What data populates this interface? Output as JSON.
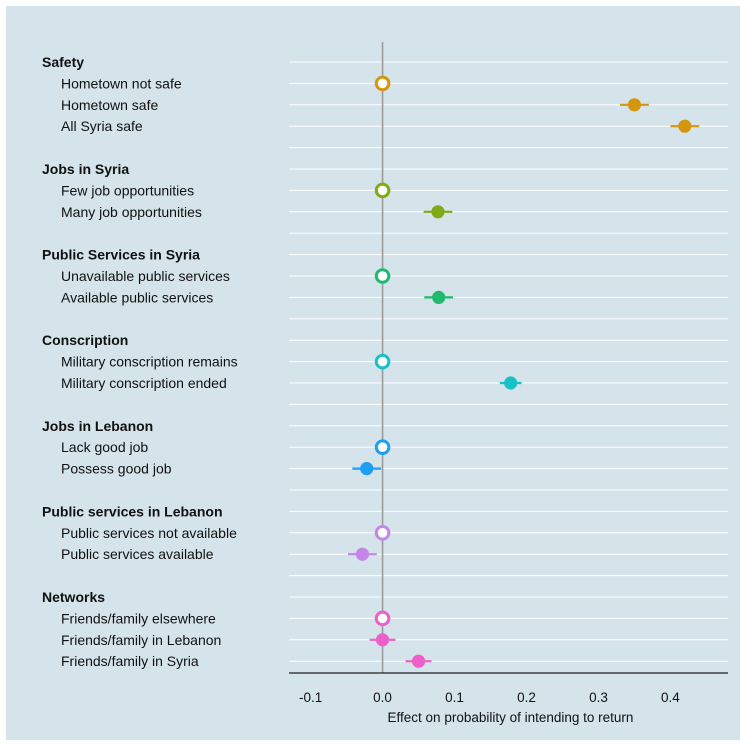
{
  "chart_data": {
    "type": "scatter",
    "subtype": "coefficient-plot",
    "xlabel": "Effect on probability of intending to return",
    "xlim": [
      -0.13,
      0.48
    ],
    "xticks": [
      -0.1,
      0.0,
      0.1,
      0.2,
      0.3,
      0.4
    ],
    "xtick_labels": [
      "-0.1",
      "0.0",
      "0.1",
      "0.2",
      "0.3",
      "0.4"
    ],
    "reference_line_x": 0,
    "grid": "horizontal",
    "background": "#d5e3ea",
    "groups": [
      {
        "label": "Safety",
        "color": "#d4960f",
        "items": [
          {
            "label": "Hometown not safe",
            "estimate": 0.0,
            "ci": [
              0.0,
              0.0
            ],
            "baseline": true
          },
          {
            "label": "Hometown safe",
            "estimate": 0.35,
            "ci": [
              0.33,
              0.37
            ],
            "baseline": false
          },
          {
            "label": "All Syria safe",
            "estimate": 0.42,
            "ci": [
              0.4,
              0.44
            ],
            "baseline": false
          }
        ]
      },
      {
        "label": "Jobs in Syria",
        "color": "#7fab14",
        "items": [
          {
            "label": "Few job opportunities",
            "estimate": 0.0,
            "ci": [
              0.0,
              0.0
            ],
            "baseline": true
          },
          {
            "label": "Many job opportunities",
            "estimate": 0.077,
            "ci": [
              0.057,
              0.097
            ],
            "baseline": false
          }
        ]
      },
      {
        "label": "Public Services in Syria",
        "color": "#1fba6e",
        "items": [
          {
            "label": "Unavailable public services",
            "estimate": 0.0,
            "ci": [
              0.0,
              0.0
            ],
            "baseline": true
          },
          {
            "label": "Available public services",
            "estimate": 0.078,
            "ci": [
              0.058,
              0.098
            ],
            "baseline": false
          }
        ]
      },
      {
        "label": "Conscription",
        "color": "#18c1c6",
        "items": [
          {
            "label": "Military conscription remains",
            "estimate": 0.0,
            "ci": [
              0.0,
              0.0
            ],
            "baseline": true
          },
          {
            "label": "Military conscription ended",
            "estimate": 0.178,
            "ci": [
              0.163,
              0.193
            ],
            "baseline": false
          }
        ]
      },
      {
        "label": "Jobs in Lebanon",
        "color": "#1f9ef5",
        "items": [
          {
            "label": "Lack good job",
            "estimate": 0.0,
            "ci": [
              0.0,
              0.0
            ],
            "baseline": true
          },
          {
            "label": "Possess good job",
            "estimate": -0.022,
            "ci": [
              -0.042,
              -0.002
            ],
            "baseline": false
          }
        ]
      },
      {
        "label": "Public services in Lebanon",
        "color": "#c487e8",
        "items": [
          {
            "label": "Public services not available",
            "estimate": 0.0,
            "ci": [
              0.0,
              0.0
            ],
            "baseline": true
          },
          {
            "label": "Public services available",
            "estimate": -0.028,
            "ci": [
              -0.048,
              -0.008
            ],
            "baseline": false
          }
        ]
      },
      {
        "label": "Networks",
        "color": "#ee5fc8",
        "items": [
          {
            "label": "Friends/family elsewhere",
            "estimate": 0.0,
            "ci": [
              0.0,
              0.0
            ],
            "baseline": true
          },
          {
            "label": "Friends/family in Lebanon",
            "estimate": 0.0,
            "ci": [
              -0.018,
              0.018
            ],
            "baseline": false
          },
          {
            "label": "Friends/family in Syria",
            "estimate": 0.05,
            "ci": [
              0.032,
              0.068
            ],
            "baseline": false
          }
        ]
      }
    ]
  }
}
